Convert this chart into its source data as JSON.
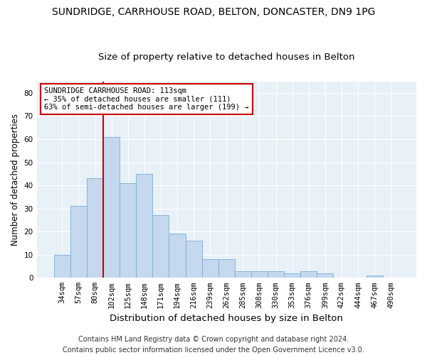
{
  "title1": "SUNDRIDGE, CARRHOUSE ROAD, BELTON, DONCASTER, DN9 1PG",
  "title2": "Size of property relative to detached houses in Belton",
  "xlabel": "Distribution of detached houses by size in Belton",
  "ylabel": "Number of detached properties",
  "categories": [
    "34sqm",
    "57sqm",
    "80sqm",
    "102sqm",
    "125sqm",
    "148sqm",
    "171sqm",
    "194sqm",
    "216sqm",
    "239sqm",
    "262sqm",
    "285sqm",
    "308sqm",
    "330sqm",
    "353sqm",
    "376sqm",
    "399sqm",
    "422sqm",
    "444sqm",
    "467sqm",
    "490sqm"
  ],
  "values": [
    10,
    31,
    43,
    61,
    41,
    45,
    27,
    19,
    16,
    8,
    8,
    3,
    3,
    3,
    2,
    3,
    2,
    0,
    0,
    1,
    0
  ],
  "bar_color": "#c5d8ee",
  "bar_edge_color": "#7aadd4",
  "vline_color": "#cc0000",
  "vline_index": 3,
  "ylim": [
    0,
    85
  ],
  "yticks": [
    0,
    10,
    20,
    30,
    40,
    50,
    60,
    70,
    80
  ],
  "annotation_line1": "SUNDRIDGE CARRHOUSE ROAD: 113sqm",
  "annotation_line2": "← 35% of detached houses are smaller (111)",
  "annotation_line3": "63% of semi-detached houses are larger (199) →",
  "annotation_box_color": "#ffffff",
  "annotation_box_edge": "#cc0000",
  "footer1": "Contains HM Land Registry data © Crown copyright and database right 2024.",
  "footer2": "Contains public sector information licensed under the Open Government Licence v3.0.",
  "background_color": "#ffffff",
  "plot_bg_color": "#e8f0f8",
  "grid_color": "#ffffff",
  "title1_fontsize": 10,
  "title2_fontsize": 9.5,
  "xlabel_fontsize": 9.5,
  "ylabel_fontsize": 8.5,
  "tick_fontsize": 7.5,
  "annot_fontsize": 7.5,
  "footer_fontsize": 7
}
